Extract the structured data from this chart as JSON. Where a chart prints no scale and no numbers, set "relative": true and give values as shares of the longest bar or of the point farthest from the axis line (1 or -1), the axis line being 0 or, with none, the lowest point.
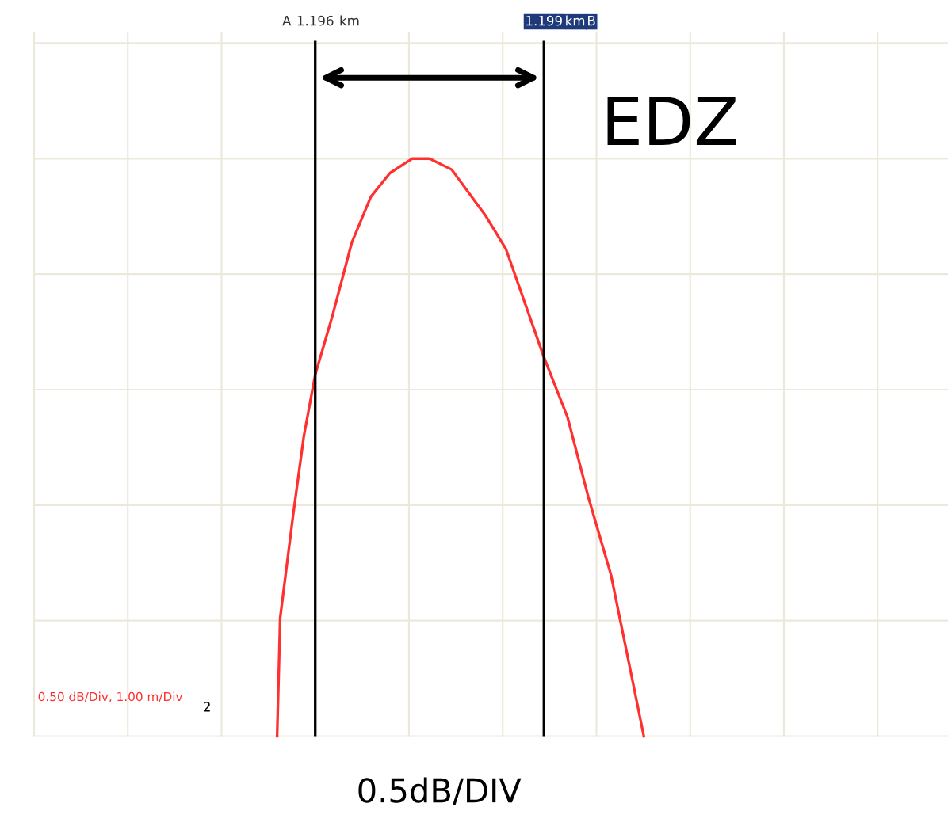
{
  "chart_data": {
    "type": "line",
    "relative": true,
    "xlabel": "0.5dB/DIV",
    "x": [
      1.1955,
      1.19554,
      1.19571,
      1.19585,
      1.196,
      1.19623,
      1.19648,
      1.19673,
      1.19698,
      1.19727,
      1.1975,
      1.19779,
      1.19823,
      1.1985,
      1.199,
      1.19931,
      1.19958,
      1.19988,
      1.20031
    ],
    "series": [
      {
        "color": "#ff3030",
        "values": [
          0,
          0.205,
          0.383,
          0.519,
          0.626,
          0.73,
          0.855,
          0.934,
          0.975,
          1,
          1,
          0.981,
          0.902,
          0.844,
          0.656,
          0.552,
          0.415,
          0.279,
          0
        ]
      }
    ],
    "xlim": [
      1.1923,
      1.2043
    ],
    "xticks": [
      1.196,
      1.199
    ],
    "ref_lines": [
      {
        "axis": "x",
        "value": 1.196,
        "color": "#000000"
      },
      {
        "axis": "x",
        "value": 1.199,
        "color": "#000000"
      }
    ],
    "annotations": [
      "EDZ",
      "0.50 dB/Div, 1.00 m/Div",
      "2",
      "A",
      "km",
      "km",
      "B"
    ],
    "grid": true,
    "marker": "none",
    "line_style": "solid",
    "legend": false
  }
}
